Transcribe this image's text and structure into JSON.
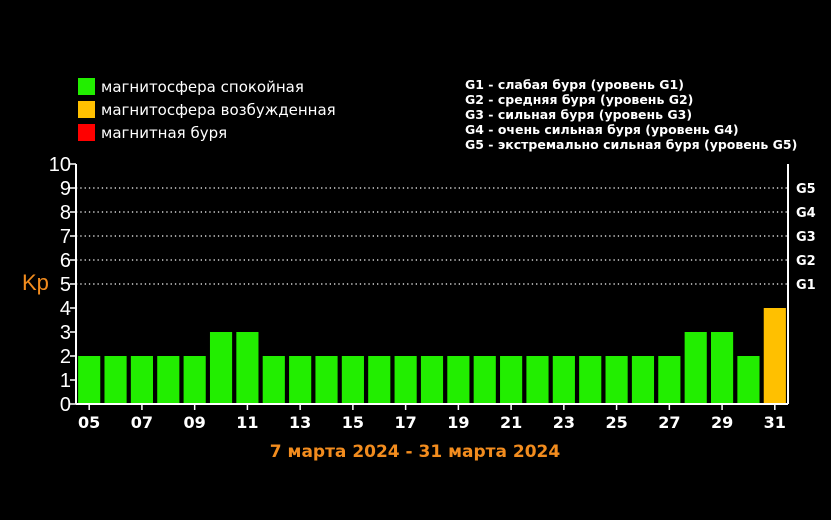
{
  "colors": {
    "background": "#000000",
    "quiet": "#22ee00",
    "active": "#ffc000",
    "storm": "#ff0000",
    "axis": "#ffffff",
    "accent": "#f28c1e"
  },
  "legend": [
    {
      "label": "магнитосфера спокойная",
      "color": "#22ee00"
    },
    {
      "label": "магнитосфера возбужденная",
      "color": "#ffc000"
    },
    {
      "label": "магнитная буря",
      "color": "#ff0000"
    }
  ],
  "storm_levels": [
    "G1 - слабая буря (уровень G1)",
    "G2 - средняя буря (уровень G2)",
    "G3 - сильная буря (уровень G3)",
    "G4 - очень сильная буря (уровень G4)",
    "G5 - экстремально сильная буря (уровень G5)"
  ],
  "chart_data": {
    "type": "bar",
    "title": "",
    "subtitle": "7 марта 2024 - 31 марта 2024",
    "ylabel": "Kp",
    "xlabel": "",
    "ylim": [
      0,
      10
    ],
    "yticks": [
      "0",
      "1",
      "2",
      "3",
      "4",
      "5",
      "6",
      "7",
      "8",
      "9",
      "10"
    ],
    "x_tick_labels": [
      "05",
      "07",
      "09",
      "11",
      "13",
      "15",
      "17",
      "19",
      "21",
      "23",
      "25",
      "27",
      "29",
      "31"
    ],
    "x_tick_positions": [
      1,
      3,
      5,
      7,
      9,
      11,
      13,
      15,
      17,
      19,
      21,
      23,
      25,
      27
    ],
    "g_levels": [
      {
        "label": "G1",
        "kp": 5
      },
      {
        "label": "G2",
        "kp": 6
      },
      {
        "label": "G3",
        "kp": 7
      },
      {
        "label": "G4",
        "kp": 8
      },
      {
        "label": "G5",
        "kp": 9
      }
    ],
    "grid": "dotted lines at Kp 5-9",
    "values": [
      2,
      2,
      2,
      2,
      2,
      3,
      3,
      2,
      2,
      2,
      2,
      2,
      2,
      2,
      2,
      2,
      2,
      2,
      2,
      2,
      2,
      2,
      2,
      3,
      3,
      2,
      4
    ],
    "colors": [
      "quiet",
      "quiet",
      "quiet",
      "quiet",
      "quiet",
      "quiet",
      "quiet",
      "quiet",
      "quiet",
      "quiet",
      "quiet",
      "quiet",
      "quiet",
      "quiet",
      "quiet",
      "quiet",
      "quiet",
      "quiet",
      "quiet",
      "quiet",
      "quiet",
      "quiet",
      "quiet",
      "quiet",
      "quiet",
      "quiet",
      "active"
    ]
  }
}
